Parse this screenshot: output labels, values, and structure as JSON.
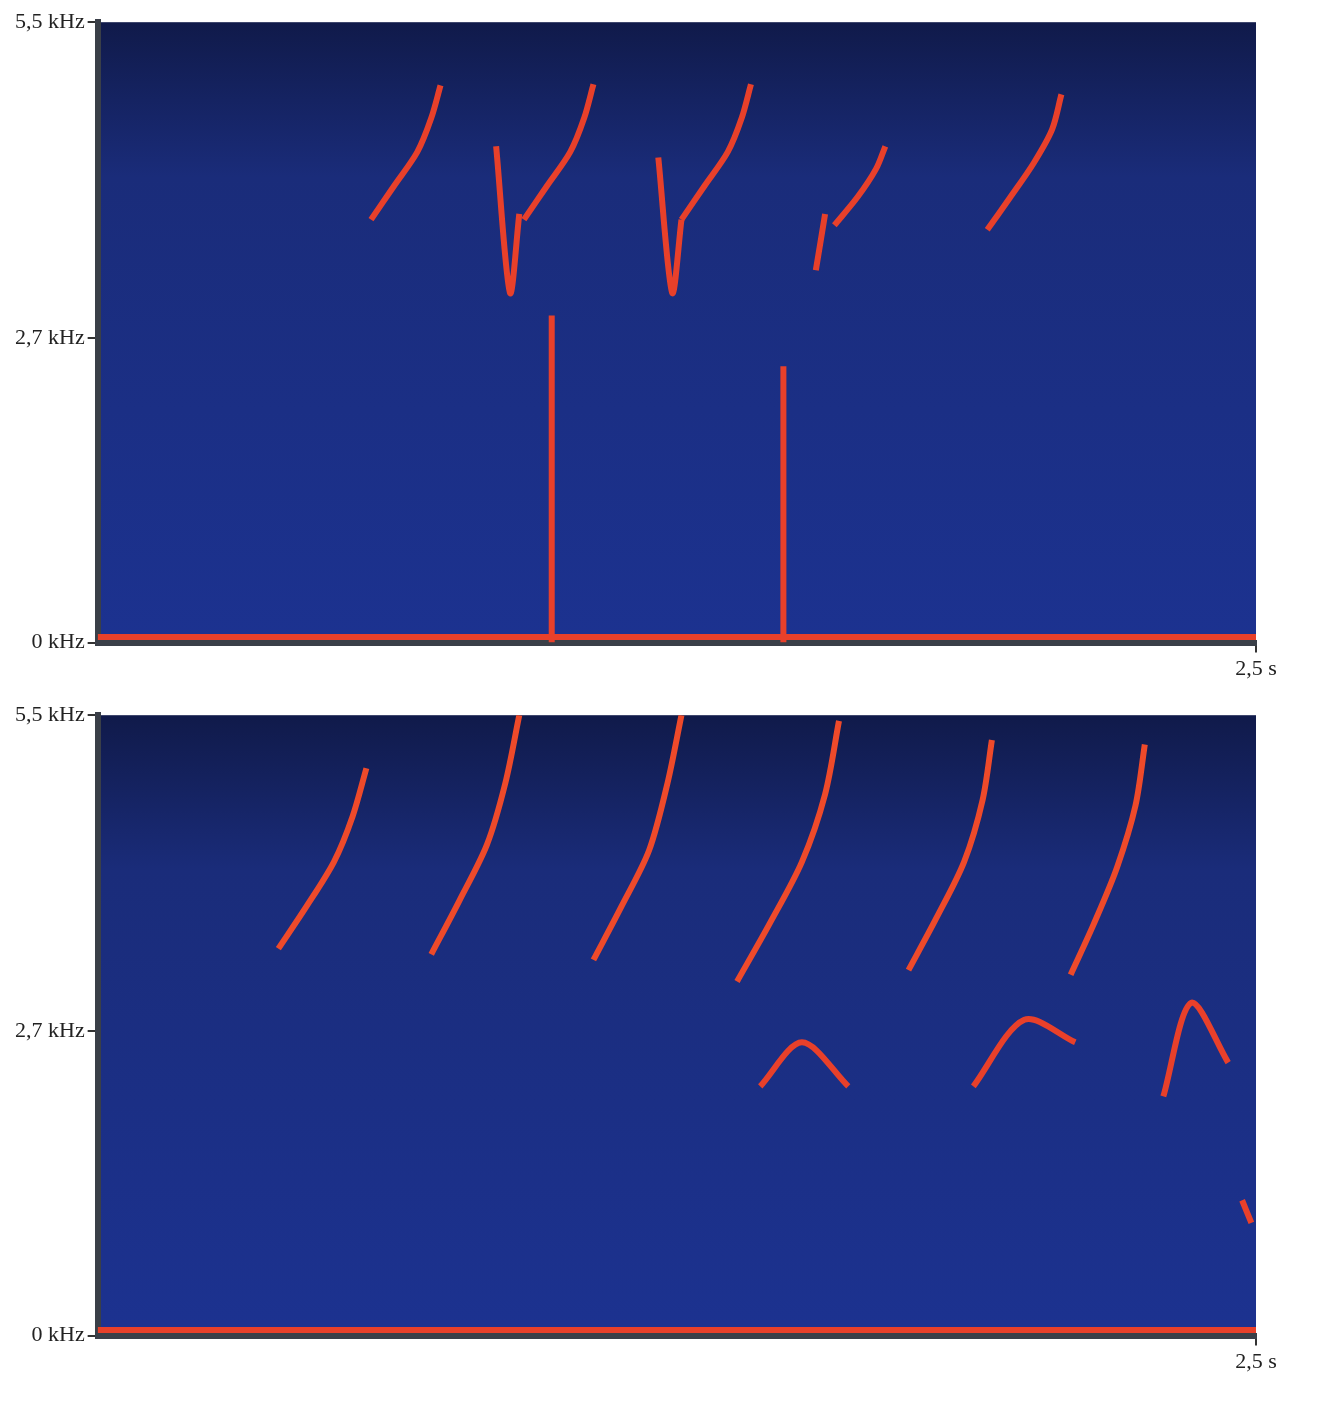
{
  "chart_data": [
    {
      "type": "line",
      "xlim": [
        0,
        2.5
      ],
      "xticks": [
        {
          "value": 2.5,
          "label": "2,5 s"
        }
      ],
      "ylim": [
        0,
        5.5
      ],
      "yticks": [
        {
          "value": 0,
          "label": "0 kHz"
        },
        {
          "value": 2.7,
          "label": "2,7 kHz"
        },
        {
          "value": 5.5,
          "label": "5,5 kHz"
        }
      ],
      "grid": false,
      "series": [
        {
          "color": "#e8402a",
          "x": [
            0.59,
            0.64,
            0.69,
            0.72,
            0.74
          ],
          "values": [
            3.75,
            4.05,
            4.35,
            4.65,
            4.94
          ]
        },
        {
          "color": "#e8402a",
          "x": [
            0.86,
            0.89,
            0.91
          ],
          "values": [
            4.4,
            3.1,
            3.8
          ]
        },
        {
          "color": "#e8402a",
          "x": [
            0.92,
            0.97,
            1.02,
            1.05,
            1.07
          ],
          "values": [
            3.75,
            4.05,
            4.35,
            4.65,
            4.95
          ]
        },
        {
          "color": "#e8402a",
          "x": [
            1.21,
            1.24,
            1.26
          ],
          "values": [
            4.3,
            3.1,
            3.75
          ]
        },
        {
          "color": "#e8402a",
          "x": [
            1.26,
            1.31,
            1.36,
            1.39,
            1.41
          ],
          "values": [
            3.75,
            4.05,
            4.35,
            4.65,
            4.95
          ]
        },
        {
          "color": "#e8402a",
          "x": [
            1.55,
            1.57
          ],
          "values": [
            3.3,
            3.8
          ]
        },
        {
          "color": "#e8402a",
          "x": [
            1.59,
            1.64,
            1.68,
            1.7
          ],
          "values": [
            3.7,
            3.95,
            4.2,
            4.4
          ]
        },
        {
          "color": "#e8402a",
          "x": [
            1.92,
            1.97,
            2.02,
            2.06,
            2.08
          ],
          "values": [
            3.66,
            3.95,
            4.25,
            4.55,
            4.86
          ]
        },
        {
          "color": "#e8402a",
          "x": [
            0.98,
            0.98
          ],
          "values": [
            2.9,
            0
          ]
        },
        {
          "color": "#e8402a",
          "x": [
            1.48,
            1.48
          ],
          "values": [
            2.45,
            0
          ]
        },
        {
          "color": "#e8402a",
          "x": [
            0,
            2.5
          ],
          "values": [
            0.05,
            0.05
          ]
        }
      ]
    },
    {
      "type": "line",
      "xlim": [
        0,
        2.5
      ],
      "xticks": [
        {
          "value": 2.5,
          "label": "2,5 s"
        }
      ],
      "ylim": [
        0,
        5.5
      ],
      "yticks": [
        {
          "value": 0,
          "label": "0 kHz"
        },
        {
          "value": 2.7,
          "label": "2,7 kHz"
        },
        {
          "value": 5.5,
          "label": "5,5 kHz"
        }
      ],
      "grid": false,
      "series": [
        {
          "color": "#ee4a2a",
          "x": [
            0.39,
            0.45,
            0.51,
            0.55,
            0.58
          ],
          "values": [
            3.43,
            3.8,
            4.2,
            4.6,
            5.03
          ]
        },
        {
          "color": "#ee4a2a",
          "x": [
            0.72,
            0.78,
            0.84,
            0.88,
            0.91
          ],
          "values": [
            3.38,
            3.85,
            4.35,
            4.9,
            5.5
          ]
        },
        {
          "color": "#ee4a2a",
          "x": [
            1.07,
            1.13,
            1.19,
            1.23,
            1.26
          ],
          "values": [
            3.33,
            3.8,
            4.3,
            4.9,
            5.5
          ]
        },
        {
          "color": "#ee4a2a",
          "x": [
            1.38,
            1.45,
            1.52,
            1.57,
            1.6
          ],
          "values": [
            3.14,
            3.65,
            4.2,
            4.8,
            5.45
          ]
        },
        {
          "color": "#ee4a2a",
          "x": [
            1.75,
            1.81,
            1.87,
            1.91,
            1.93
          ],
          "values": [
            3.24,
            3.7,
            4.2,
            4.75,
            5.28
          ]
        },
        {
          "color": "#ee4a2a",
          "x": [
            2.1,
            2.15,
            2.2,
            2.24,
            2.26
          ],
          "values": [
            3.2,
            3.65,
            4.15,
            4.7,
            5.24
          ]
        },
        {
          "color": "#e8402a",
          "x": [
            1.43,
            1.52,
            1.62
          ],
          "values": [
            2.21,
            2.6,
            2.21
          ]
        },
        {
          "color": "#e8402a",
          "x": [
            1.89,
            2.0,
            2.11
          ],
          "values": [
            2.21,
            2.8,
            2.6
          ]
        },
        {
          "color": "#e8402a",
          "x": [
            2.3,
            2.36,
            2.44
          ],
          "values": [
            2.12,
            2.95,
            2.42
          ]
        },
        {
          "color": "#e8402a",
          "x": [
            2.47,
            2.49
          ],
          "values": [
            1.2,
            1.0
          ]
        },
        {
          "color": "#e8402a",
          "x": [
            0,
            2.5
          ],
          "values": [
            0.05,
            0.05
          ]
        }
      ]
    }
  ]
}
